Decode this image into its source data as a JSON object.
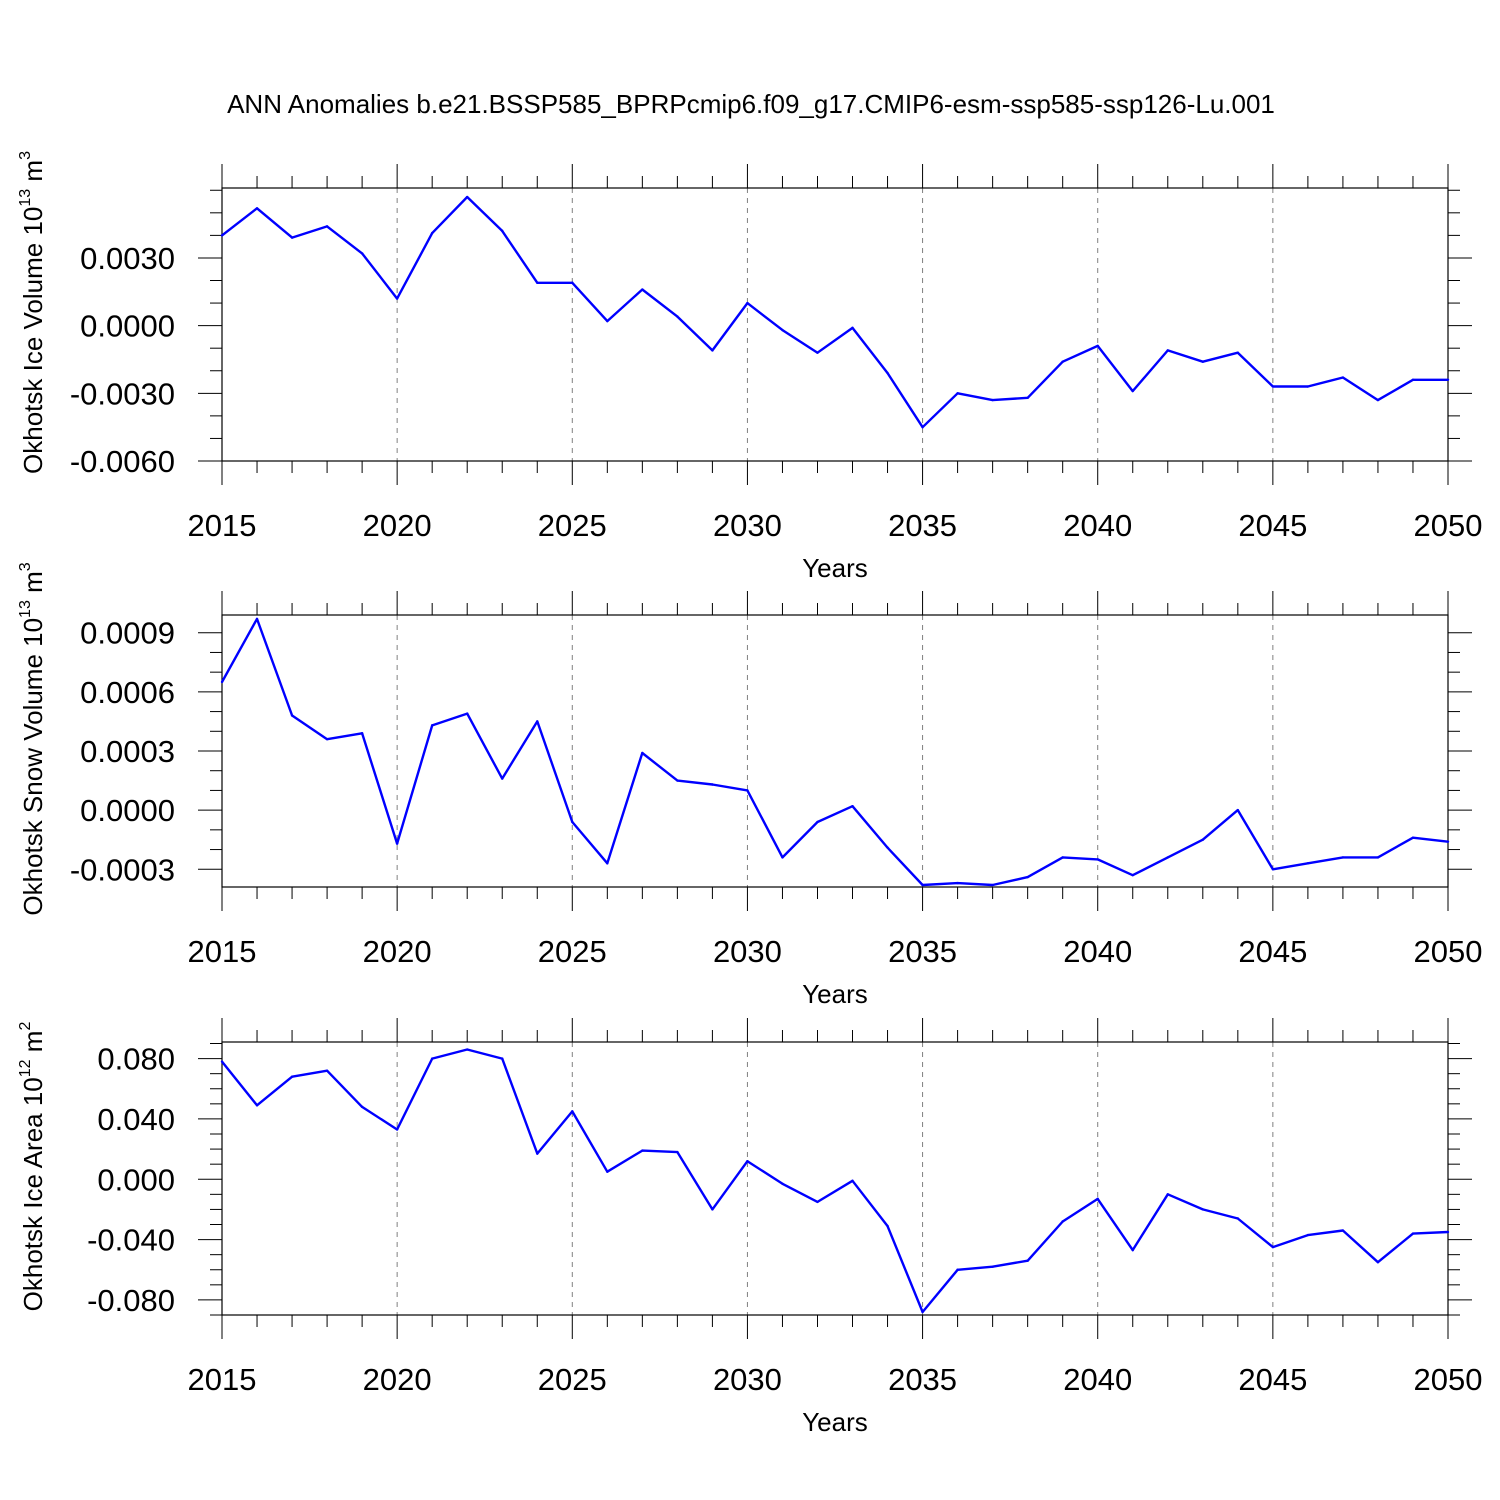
{
  "title": "ANN Anomalies b.e21.BSSP585_BPRPcmip6.f09_g17.CMIP6-esm-ssp585-ssp126-Lu.001",
  "chart_data": [
    {
      "type": "line",
      "title": "",
      "xlabel": "Years",
      "ylabel_main": "Okhotsk Ice Volume 10",
      "ylabel_exp": "13",
      "ylabel_unit": " m",
      "ylabel_unit_exp": "3",
      "xlim": [
        2015,
        2050
      ],
      "ylim": [
        -0.006,
        0.0061
      ],
      "grid": "vertical dashed at major x ticks",
      "line_color": "#0000ff",
      "x_ticks": [
        2015,
        2020,
        2025,
        2030,
        2035,
        2040,
        2045,
        2050
      ],
      "x_tick_labels": [
        "2015",
        "2020",
        "2025",
        "2030",
        "2035",
        "2040",
        "2045",
        "2050"
      ],
      "y_ticks": [
        0.003,
        0.0,
        -0.003,
        -0.006
      ],
      "y_tick_labels": [
        "0.0030",
        "0.0000",
        "-0.0030",
        "-0.0060"
      ],
      "y_minor_step": 0.001,
      "x": [
        2015,
        2016,
        2017,
        2018,
        2019,
        2020,
        2021,
        2022,
        2023,
        2024,
        2025,
        2026,
        2027,
        2028,
        2029,
        2030,
        2031,
        2032,
        2033,
        2034,
        2035,
        2036,
        2037,
        2038,
        2039,
        2040,
        2041,
        2042,
        2043,
        2044,
        2045,
        2046,
        2047,
        2048,
        2049,
        2050
      ],
      "values": [
        0.004,
        0.0052,
        0.0039,
        0.0044,
        0.0032,
        0.0012,
        0.0041,
        0.0057,
        0.0042,
        0.0019,
        0.0019,
        0.0002,
        0.0016,
        0.0004,
        -0.0011,
        0.001,
        -0.0002,
        -0.0012,
        -0.0001,
        -0.0021,
        -0.0045,
        -0.003,
        -0.0033,
        -0.0032,
        -0.0016,
        -0.0009,
        -0.0029,
        -0.0011,
        -0.0016,
        -0.0012,
        -0.0027,
        -0.0027,
        -0.0023,
        -0.0033,
        -0.0024,
        -0.0024
      ]
    },
    {
      "type": "line",
      "title": "",
      "xlabel": "Years",
      "ylabel_main": "Okhotsk Snow Volume 10",
      "ylabel_exp": "13",
      "ylabel_unit": " m",
      "ylabel_unit_exp": "3",
      "xlim": [
        2015,
        2050
      ],
      "ylim": [
        -0.00039,
        0.00099
      ],
      "grid": "vertical dashed at major x ticks",
      "line_color": "#0000ff",
      "x_ticks": [
        2015,
        2020,
        2025,
        2030,
        2035,
        2040,
        2045,
        2050
      ],
      "x_tick_labels": [
        "2015",
        "2020",
        "2025",
        "2030",
        "2035",
        "2040",
        "2045",
        "2050"
      ],
      "y_ticks": [
        0.0009,
        0.0006,
        0.0003,
        0.0,
        -0.0003
      ],
      "y_tick_labels": [
        "0.0009",
        "0.0006",
        "0.0003",
        "0.0000",
        "-0.0003"
      ],
      "y_minor_step": 0.0001,
      "x": [
        2015,
        2016,
        2017,
        2018,
        2019,
        2020,
        2021,
        2022,
        2023,
        2024,
        2025,
        2026,
        2027,
        2028,
        2029,
        2030,
        2031,
        2032,
        2033,
        2034,
        2035,
        2036,
        2037,
        2038,
        2039,
        2040,
        2041,
        2042,
        2043,
        2044,
        2045,
        2046,
        2047,
        2048,
        2049,
        2050
      ],
      "values": [
        0.00065,
        0.00097,
        0.00048,
        0.00036,
        0.00039,
        -0.00017,
        0.00043,
        0.00049,
        0.00016,
        0.00045,
        -6e-05,
        -0.00027,
        0.00029,
        0.00015,
        0.00013,
        0.0001,
        -0.00024,
        -6e-05,
        2e-05,
        -0.00019,
        -0.00038,
        -0.00037,
        -0.00038,
        -0.00034,
        -0.00024,
        -0.00025,
        -0.00033,
        -0.00024,
        -0.00015,
        0.0,
        -0.0003,
        -0.00027,
        -0.00024,
        -0.00024,
        -0.00014,
        -0.00016
      ]
    },
    {
      "type": "line",
      "title": "",
      "xlabel": "Years",
      "ylabel_main": "Okhotsk Ice Area 10",
      "ylabel_exp": "12",
      "ylabel_unit": " m",
      "ylabel_unit_exp": "2",
      "xlim": [
        2015,
        2050
      ],
      "ylim": [
        -0.09,
        0.091
      ],
      "grid": "vertical dashed at major x ticks",
      "line_color": "#0000ff",
      "x_ticks": [
        2015,
        2020,
        2025,
        2030,
        2035,
        2040,
        2045,
        2050
      ],
      "x_tick_labels": [
        "2015",
        "2020",
        "2025",
        "2030",
        "2035",
        "2040",
        "2045",
        "2050"
      ],
      "y_ticks": [
        0.08,
        0.04,
        0.0,
        -0.04,
        -0.08
      ],
      "y_tick_labels": [
        "0.080",
        "0.040",
        "0.000",
        "-0.040",
        "-0.080"
      ],
      "y_minor_step": 0.01,
      "x": [
        2015,
        2016,
        2017,
        2018,
        2019,
        2020,
        2021,
        2022,
        2023,
        2024,
        2025,
        2026,
        2027,
        2028,
        2029,
        2030,
        2031,
        2032,
        2033,
        2034,
        2035,
        2036,
        2037,
        2038,
        2039,
        2040,
        2041,
        2042,
        2043,
        2044,
        2045,
        2046,
        2047,
        2048,
        2049,
        2050
      ],
      "values": [
        0.078,
        0.049,
        0.068,
        0.072,
        0.048,
        0.033,
        0.08,
        0.086,
        0.08,
        0.017,
        0.045,
        0.005,
        0.019,
        0.018,
        -0.02,
        0.012,
        -0.003,
        -0.015,
        -0.001,
        -0.031,
        -0.088,
        -0.06,
        -0.058,
        -0.054,
        -0.028,
        -0.013,
        -0.047,
        -0.01,
        -0.02,
        -0.026,
        -0.045,
        -0.037,
        -0.034,
        -0.055,
        -0.036,
        -0.035
      ]
    }
  ]
}
